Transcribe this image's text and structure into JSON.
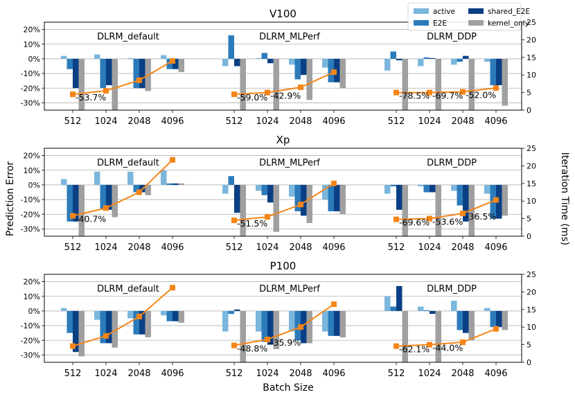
{
  "chart_data": {
    "type": "bar",
    "xlabel": "Batch Size",
    "ylabel_left": "Prediction Error",
    "ylabel_right": "Iteration Time (ms)",
    "ylim_left": [
      -0.35,
      0.25
    ],
    "yticks_left": [
      "20%",
      "10%",
      "0%",
      "-10%",
      "-20%",
      "-30%"
    ],
    "ylim_right": [
      0,
      25
    ],
    "yticks_right": [
      "0",
      "5",
      "10",
      "15",
      "20",
      "25"
    ],
    "batch_sizes": [
      "512",
      "1024",
      "2048",
      "4096"
    ],
    "groups": [
      "DLRM_default",
      "DLRM_MLPerf",
      "DLRM_DDP"
    ],
    "legend": [
      {
        "name": "active",
        "color": "#7bb6dc"
      },
      {
        "name": "E2E",
        "color": "#2b7bba"
      },
      {
        "name": "shared_E2E",
        "color": "#0b3f84"
      },
      {
        "name": "kernel_only",
        "color": "#a0a0a0"
      }
    ],
    "line_color": "#f58518",
    "legend_placement": "top-right",
    "panels": [
      {
        "title": "V100",
        "groups": [
          {
            "name": "DLRM_default",
            "active": [
              0.02,
              0.03,
              0.005,
              0.025
            ],
            "E2E": [
              -0.07,
              -0.2,
              -0.2,
              -0.07
            ],
            "shared_E2E": [
              -0.2,
              -0.18,
              -0.2,
              -0.07
            ],
            "kernel_only": [
              -0.4,
              -0.4,
              -0.22,
              -0.09
            ],
            "time": [
              4.5,
              5.5,
              8.5,
              14
            ],
            "annotations": [
              "-53.7%"
            ]
          },
          {
            "name": "DLRM_MLPerf",
            "active": [
              -0.05,
              0.005,
              -0.04,
              -0.06
            ],
            "E2E": [
              0.16,
              0.04,
              -0.14,
              -0.16
            ],
            "shared_E2E": [
              -0.05,
              -0.03,
              -0.11,
              -0.16
            ],
            "kernel_only": [
              -0.4,
              -0.4,
              -0.28,
              -0.2
            ],
            "time": [
              4.5,
              5,
              6.5,
              10.8
            ],
            "annotations": [
              "-59.0%",
              "-42.9%"
            ]
          },
          {
            "name": "DLRM_DDP",
            "active": [
              -0.08,
              -0.05,
              -0.04,
              -0.02
            ],
            "E2E": [
              0.05,
              0.01,
              -0.02,
              -0.18
            ],
            "shared_E2E": [
              -0.01,
              0.005,
              0.02,
              -0.18
            ],
            "kernel_only": [
              -0.4,
              -0.4,
              -0.4,
              -0.32
            ],
            "time": [
              5,
              5,
              5.2,
              6.3
            ],
            "annotations": [
              "-78.5%",
              "-69.7%",
              "-52.0%"
            ]
          }
        ]
      },
      {
        "title": "Xp",
        "groups": [
          {
            "name": "DLRM_default",
            "active": [
              0.04,
              0.09,
              0.09,
              0.1
            ],
            "E2E": [
              -0.25,
              -0.17,
              -0.05,
              0.01
            ],
            "shared_E2E": [
              -0.25,
              -0.17,
              -0.05,
              0.01
            ],
            "kernel_only": [
              -0.4,
              -0.22,
              -0.07,
              0.01
            ],
            "time": [
              5.8,
              8,
              12.5,
              21.7
            ],
            "annotations": [
              "-40.7%"
            ]
          },
          {
            "name": "DLRM_MLPerf",
            "active": [
              -0.06,
              -0.04,
              -0.08,
              -0.1
            ],
            "E2E": [
              0.06,
              -0.07,
              -0.18,
              -0.18
            ],
            "shared_E2E": [
              -0.19,
              -0.12,
              -0.21,
              -0.18
            ],
            "kernel_only": [
              -0.4,
              -0.32,
              -0.26,
              -0.2
            ],
            "time": [
              4.5,
              5.5,
              9,
              15
            ],
            "annotations": [
              "-51.5%"
            ]
          },
          {
            "name": "DLRM_DDP",
            "active": [
              -0.06,
              -0.01,
              -0.04,
              -0.06
            ],
            "E2E": [
              -0.01,
              -0.05,
              -0.14,
              -0.23
            ],
            "shared_E2E": [
              -0.17,
              -0.05,
              -0.25,
              -0.23
            ],
            "kernel_only": [
              -0.4,
              -0.4,
              -0.4,
              -0.21
            ],
            "time": [
              4.8,
              5,
              6.5,
              10.3
            ],
            "annotations": [
              "-69.6%",
              "-53.6%",
              "-36.5%"
            ]
          }
        ]
      },
      {
        "title": "P100",
        "groups": [
          {
            "name": "DLRM_default",
            "active": [
              0.02,
              -0.06,
              -0.05,
              -0.03
            ],
            "E2E": [
              -0.15,
              -0.22,
              -0.16,
              -0.07
            ],
            "shared_E2E": [
              -0.28,
              -0.22,
              -0.16,
              -0.07
            ],
            "kernel_only": [
              -0.31,
              -0.25,
              -0.18,
              -0.08
            ],
            "time": [
              4.6,
              7.5,
              13,
              21.2
            ],
            "annotations": []
          },
          {
            "name": "DLRM_MLPerf",
            "active": [
              -0.14,
              -0.14,
              -0.14,
              -0.14
            ],
            "E2E": [
              -0.02,
              -0.21,
              -0.2,
              -0.17
            ],
            "shared_E2E": [
              0.01,
              -0.23,
              -0.22,
              -0.17
            ],
            "kernel_only": [
              -0.4,
              -0.26,
              -0.22,
              -0.18
            ],
            "time": [
              4.8,
              6.5,
              10,
              16.5
            ],
            "annotations": [
              "-48.8%",
              "-35.9%"
            ]
          },
          {
            "name": "DLRM_DDP",
            "active": [
              0.1,
              0.03,
              0.07,
              0.02
            ],
            "E2E": [
              0.03,
              0.005,
              -0.13,
              -0.11
            ],
            "shared_E2E": [
              0.17,
              -0.02,
              -0.15,
              -0.11
            ],
            "kernel_only": [
              -0.4,
              -0.4,
              -0.2,
              -0.13
            ],
            "time": [
              4.6,
              5,
              5.7,
              9.5
            ],
            "annotations": [
              "-62.1%",
              "-44.0%"
            ]
          }
        ]
      }
    ]
  }
}
